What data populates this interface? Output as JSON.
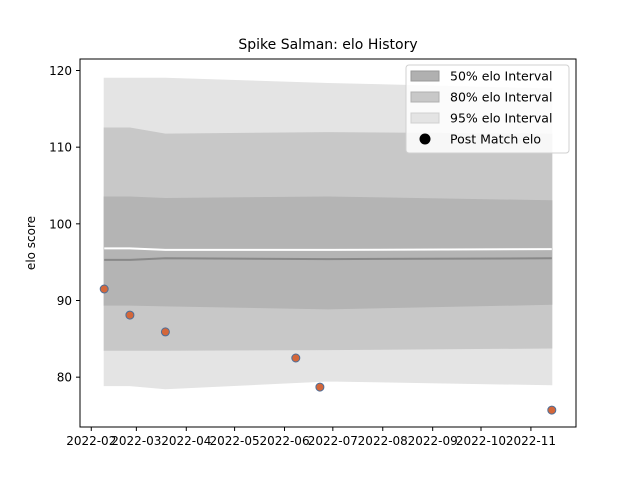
{
  "chart_data": {
    "type": "line",
    "title": "Spike Salman: elo History",
    "xlabel": "",
    "ylabel": "elo score",
    "xlim": [
      "2022-01-25",
      "2022-11-29"
    ],
    "ylim": [
      73.5,
      121.5
    ],
    "x_ticks": [
      "2022-02",
      "2022-03",
      "2022-04",
      "2022-05",
      "2022-06",
      "2022-07",
      "2022-08",
      "2022-09",
      "2022-10",
      "2022-11"
    ],
    "y_ticks": [
      80,
      90,
      100,
      110,
      120
    ],
    "grid": false,
    "legend_position": "top-right",
    "legend": [
      {
        "label": "50% elo Interval",
        "color": "#b0b0b0"
      },
      {
        "label": "80% elo Interval",
        "color": "#c8c8c8"
      },
      {
        "label": "95% elo Interval",
        "color": "#e4e4e4"
      },
      {
        "label": "Post Match elo",
        "color": "#000000"
      }
    ],
    "intervals": {
      "x": [
        "2022-02-09",
        "2022-02-25",
        "2022-03-19",
        "2022-06-28",
        "2022-11-14"
      ],
      "band_95": {
        "lower": [
          78.9,
          78.9,
          78.5,
          79.5,
          79.0
        ],
        "upper": [
          119.0,
          119.0,
          119.0,
          118.3,
          117.6
        ]
      },
      "band_80": {
        "lower": [
          83.5,
          83.5,
          83.5,
          83.6,
          83.8
        ],
        "upper": [
          112.5,
          112.5,
          111.7,
          111.9,
          111.7
        ]
      },
      "band_50": {
        "lower": [
          89.4,
          89.4,
          89.3,
          88.9,
          89.5
        ],
        "upper": [
          103.5,
          103.5,
          103.3,
          103.5,
          103.0
        ]
      }
    },
    "mean_line": {
      "x": [
        "2022-02-09",
        "2022-02-25",
        "2022-03-19",
        "2022-06-28",
        "2022-11-14"
      ],
      "y": [
        95.3,
        95.3,
        95.5,
        95.4,
        95.5
      ]
    },
    "white_line": {
      "x": [
        "2022-02-09",
        "2022-02-25",
        "2022-03-19",
        "2022-06-28",
        "2022-11-14"
      ],
      "y": [
        96.8,
        96.8,
        96.6,
        96.6,
        96.7
      ]
    },
    "series": [
      {
        "name": "Post Match elo",
        "color": "#d4673a",
        "edge_color": "#4a6e9a",
        "x": [
          "2022-02-09",
          "2022-02-25",
          "2022-03-19",
          "2022-06-08",
          "2022-06-23",
          "2022-11-14"
        ],
        "y": [
          91.5,
          88.1,
          85.9,
          82.5,
          78.7,
          75.7
        ]
      }
    ]
  }
}
